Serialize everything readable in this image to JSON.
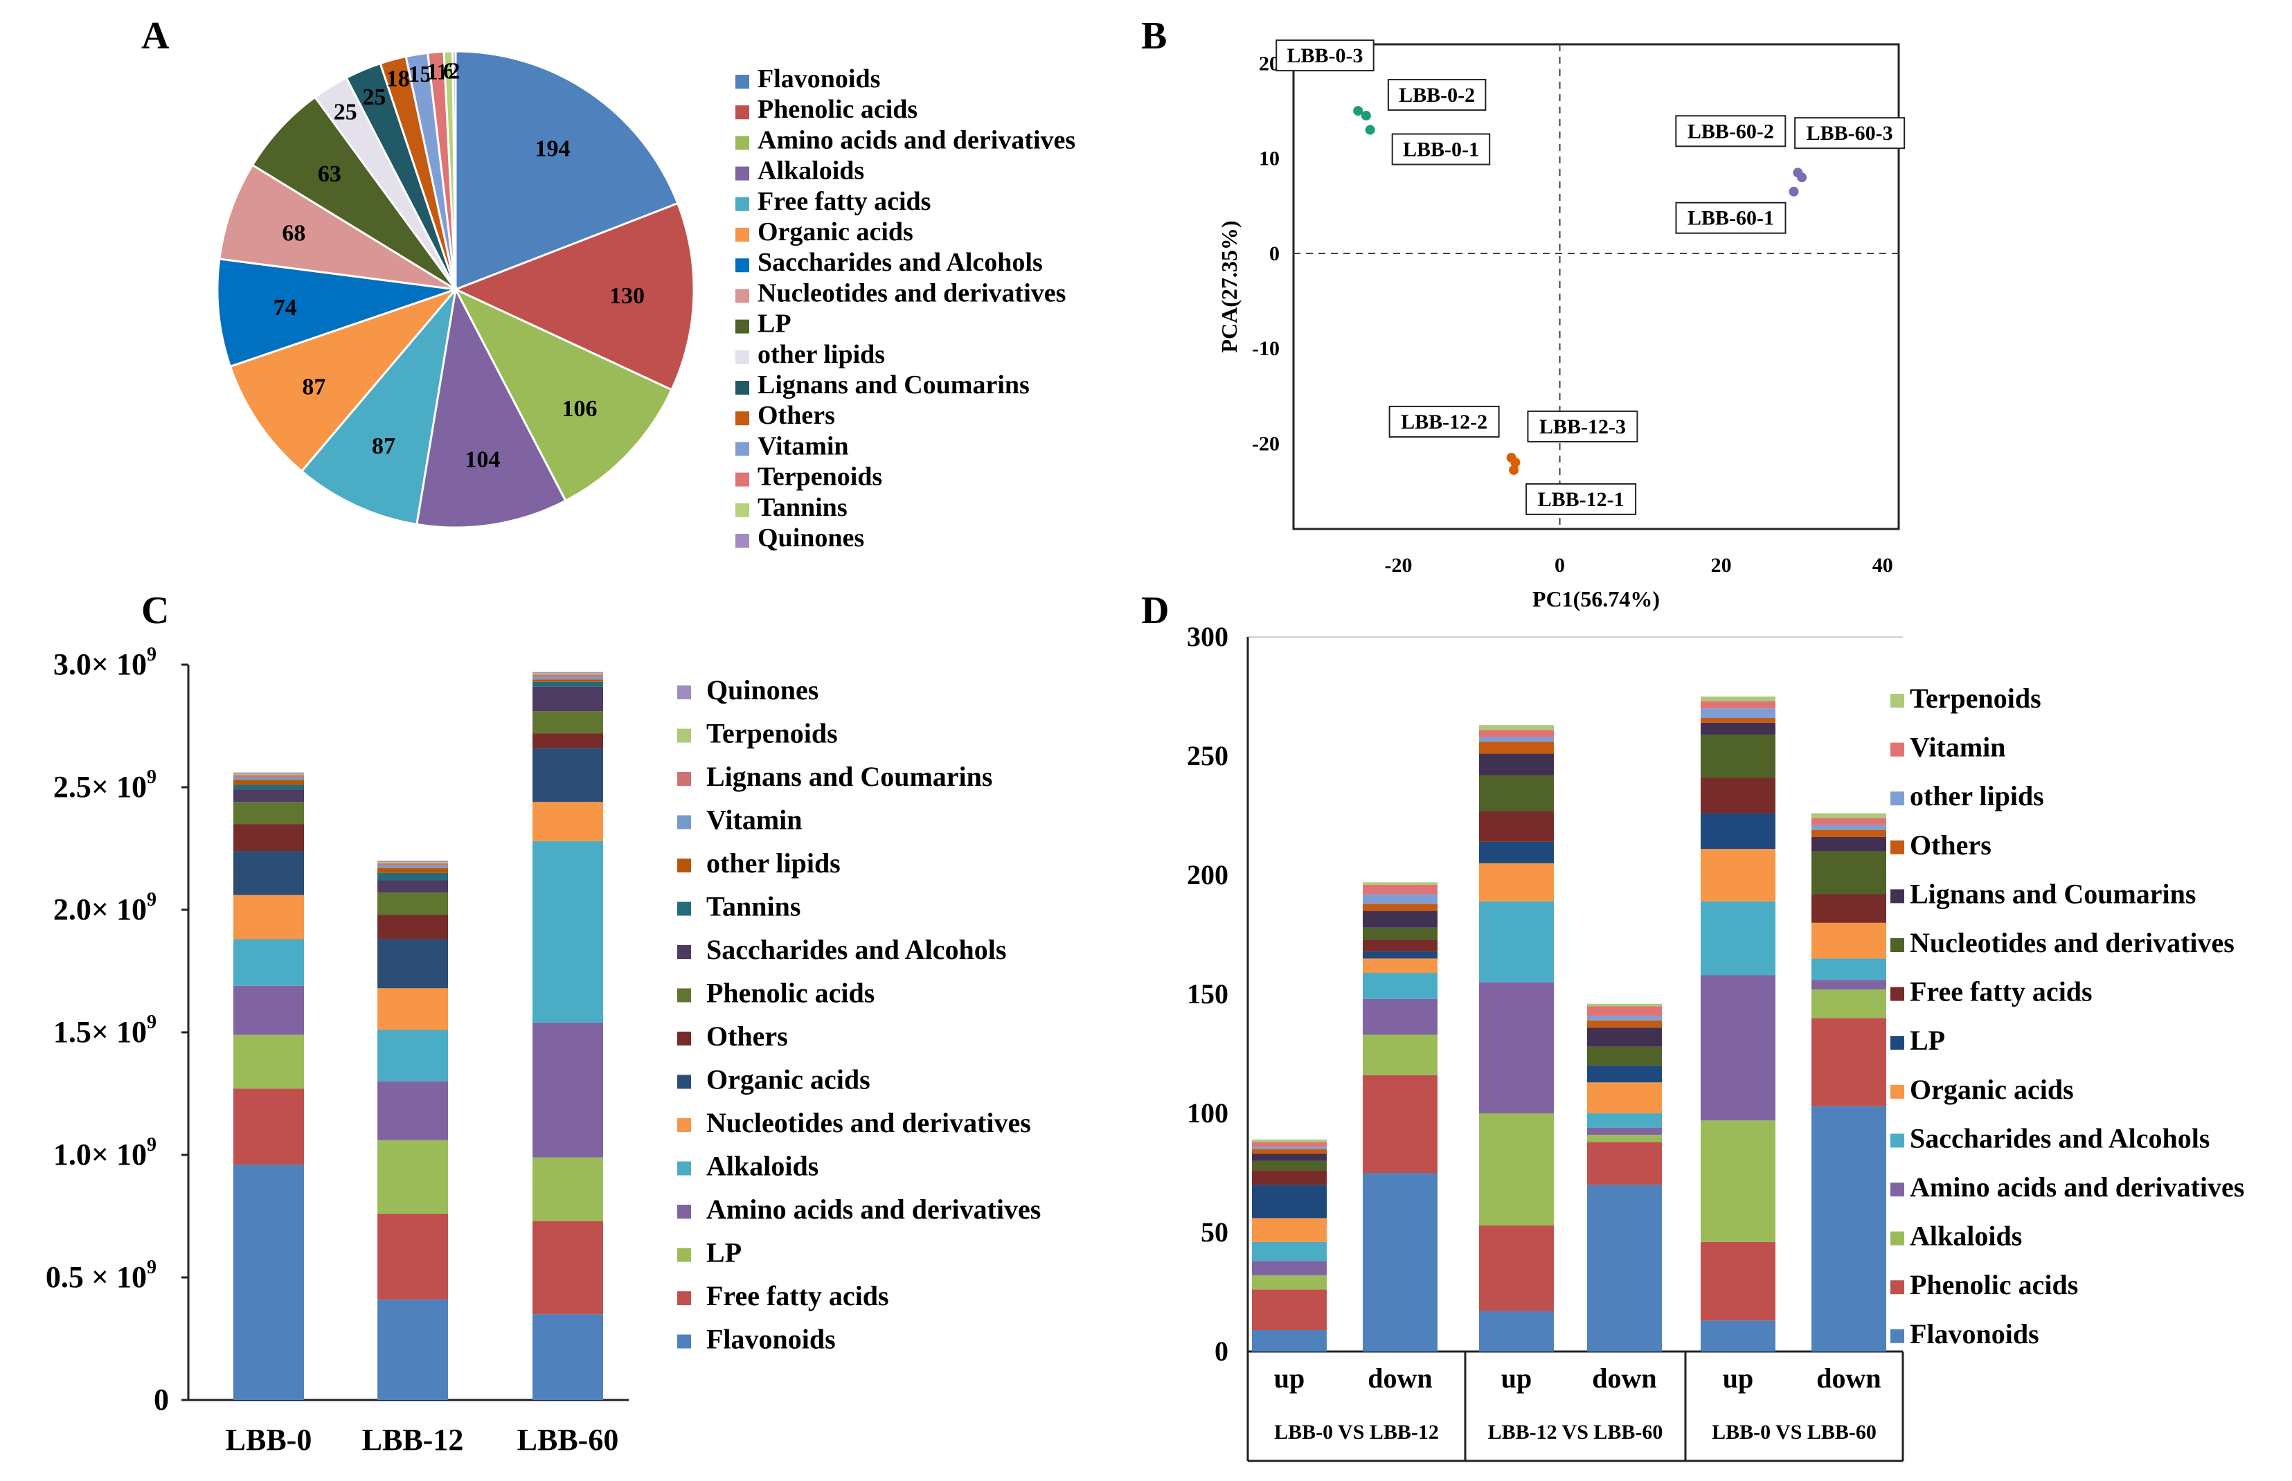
{
  "panel_labels": [
    "A",
    "B",
    "C",
    "D"
  ],
  "chart_data": [
    {
      "id": "A",
      "type": "pie",
      "categories": [
        "Flavonoids",
        "Phenolic acids",
        "Amino acids and derivatives",
        "Alkaloids",
        "Free fatty acids",
        "Organic acids",
        "Saccharides and Alcohols",
        "Nucleotides and derivatives",
        "LP",
        "other lipids",
        "Lignans and Coumarins",
        "Others",
        "Vitamin",
        "Terpenoids",
        "Tannins",
        "Quinones"
      ],
      "values": [
        194,
        130,
        106,
        104,
        87,
        87,
        74,
        68,
        63,
        25,
        25,
        18,
        15,
        11,
        6,
        2
      ],
      "value_labels": [
        "194",
        "130",
        "106",
        "104",
        "87",
        "87",
        "74",
        "68",
        "63",
        "25",
        "25",
        "18",
        "15",
        "11",
        "6",
        "2"
      ],
      "colors": [
        "#4f81bd",
        "#c0504d",
        "#9bbb59",
        "#8064a2",
        "#4bacc6",
        "#f79646",
        "#0070c0",
        "#d99694",
        "#4f6228",
        "#e4e0ec",
        "#215967",
        "#c55a11",
        "#7f9fd4",
        "#e07474",
        "#b5d37a",
        "#a58bc6"
      ]
    },
    {
      "id": "B",
      "type": "scatter",
      "xlabel": "PC1(56.74%)",
      "ylabel": "PCA(27.35%)",
      "xlim": [
        -33,
        42
      ],
      "ylim": [
        -29,
        22
      ],
      "xticks": [
        -20,
        0,
        20,
        40
      ],
      "yticks": [
        20,
        10,
        0,
        -10,
        -20
      ],
      "xtick_labels": [
        "-20",
        "0",
        "20",
        "40"
      ],
      "ytick_labels": [
        "20",
        "10",
        "0",
        "-10",
        "-20"
      ],
      "points": [
        {
          "label": "LBB-0-3",
          "x": -25,
          "y": 15,
          "color": "#1b9e77"
        },
        {
          "label": "LBB-0-2",
          "x": -24,
          "y": 14.5,
          "color": "#1b9e77"
        },
        {
          "label": "LBB-0-1",
          "x": -23.5,
          "y": 13,
          "color": "#1b9e77"
        },
        {
          "label": "LBB-60-2",
          "x": 29.5,
          "y": 8.5,
          "color": "#7570b3"
        },
        {
          "label": "LBB-60-3",
          "x": 30,
          "y": 8,
          "color": "#7570b3"
        },
        {
          "label": "LBB-60-1",
          "x": 29,
          "y": 6.5,
          "color": "#7570b3"
        },
        {
          "label": "LBB-12-2",
          "x": -6,
          "y": -21.5,
          "color": "#d95f02"
        },
        {
          "label": "LBB-12-3",
          "x": -5.5,
          "y": -22,
          "color": "#d95f02"
        },
        {
          "label": "LBB-12-1",
          "x": -5.7,
          "y": -22.8,
          "color": "#d95f02"
        }
      ]
    },
    {
      "id": "C",
      "type": "bar",
      "stacked": true,
      "categories": [
        "LBB-0",
        "LBB-12",
        "LBB-60"
      ],
      "ylim": [
        0,
        3000000000.0
      ],
      "ytick_values": [
        0,
        500000000.0,
        1000000000.0,
        1500000000.0,
        2000000000.0,
        2500000000.0,
        3000000000.0
      ],
      "ytick_labels": [
        "0",
        "0.5 × 10",
        "1.0× 10",
        "1.5× 10",
        "2.0× 10",
        "2.5× 10",
        "3.0× 10"
      ],
      "ytick_exponent": "9",
      "series": [
        {
          "name": "Flavonoids",
          "color": "#4f81bd",
          "values": [
            960000000.0,
            410000000.0,
            350000000.0
          ]
        },
        {
          "name": "Free fatty acids",
          "color": "#c0504d",
          "values": [
            310000000.0,
            350000000.0,
            380000000.0
          ]
        },
        {
          "name": "LP",
          "color": "#9bbb59",
          "values": [
            220000000.0,
            300000000.0,
            260000000.0
          ]
        },
        {
          "name": "Amino acids and derivatives",
          "color": "#8064a2",
          "values": [
            200000000.0,
            240000000.0,
            550000000.0
          ]
        },
        {
          "name": "Alkaloids",
          "color": "#4bacc6",
          "values": [
            190000000.0,
            210000000.0,
            740000000.0
          ]
        },
        {
          "name": "Nucleotides and derivatives",
          "color": "#f79646",
          "values": [
            180000000.0,
            170000000.0,
            160000000.0
          ]
        },
        {
          "name": "Organic acids",
          "color": "#2c4d75",
          "values": [
            180000000.0,
            200000000.0,
            220000000.0
          ]
        },
        {
          "name": "Others",
          "color": "#772c2a",
          "values": [
            110000000.0,
            100000000.0,
            60000000.0
          ]
        },
        {
          "name": "Phenolic acids",
          "color": "#5f7530",
          "values": [
            90000000.0,
            90000000.0,
            90000000.0
          ]
        },
        {
          "name": "Saccharides and Alcohols",
          "color": "#4d3b62",
          "values": [
            50000000.0,
            50000000.0,
            100000000.0
          ]
        },
        {
          "name": "Tannins",
          "color": "#276a7c",
          "values": [
            20000000.0,
            30000000.0,
            20000000.0
          ]
        },
        {
          "name": "other lipids",
          "color": "#b65708",
          "values": [
            20000000.0,
            20000000.0,
            10000000.0
          ]
        },
        {
          "name": "Vitamin",
          "color": "#729aca",
          "values": [
            10000000.0,
            10000000.0,
            10000000.0
          ]
        },
        {
          "name": "Lignans and Coumarins",
          "color": "#cd7371",
          "values": [
            10000000.0,
            10000000.0,
            10000000.0
          ]
        },
        {
          "name": "Terpenoids",
          "color": "#afc97a",
          "values": [
            5000000.0,
            5000000.0,
            5000000.0
          ]
        },
        {
          "name": "Quinones",
          "color": "#a18cbf",
          "values": [
            5000000.0,
            5000000.0,
            5000000.0
          ]
        }
      ],
      "legend_order": [
        "Quinones",
        "Terpenoids",
        "Lignans and Coumarins",
        "Vitamin",
        "other lipids",
        "Tannins",
        "Saccharides and Alcohols",
        "Phenolic acids",
        "Others",
        "Organic acids",
        "Nucleotides and derivatives",
        "Alkaloids",
        "Amino acids and derivatives",
        "LP",
        "Free fatty acids",
        "Flavonoids"
      ]
    },
    {
      "id": "D",
      "type": "bar",
      "stacked": true,
      "categories": [
        "up",
        "down",
        "up",
        "down",
        "up",
        "down"
      ],
      "groups": [
        "LBB-0 VS LBB-12",
        "LBB-12 VS LBB-60",
        "LBB-0 VS LBB-60"
      ],
      "ylim": [
        0,
        300
      ],
      "yticks": [
        0,
        50,
        100,
        150,
        200,
        250,
        300
      ],
      "ytick_labels": [
        "0",
        "50",
        "100",
        "150",
        "200",
        "250",
        "300"
      ],
      "series": [
        {
          "name": "Flavonoids",
          "color": "#4f81bd",
          "values": [
            9,
            75,
            17,
            70,
            13,
            103
          ]
        },
        {
          "name": "Phenolic acids",
          "color": "#c0504d",
          "values": [
            17,
            41,
            36,
            18,
            33,
            37
          ]
        },
        {
          "name": "Alkaloids",
          "color": "#9bbb59",
          "values": [
            6,
            17,
            47,
            3,
            51,
            12
          ]
        },
        {
          "name": "Amino acids and derivatives",
          "color": "#8064a2",
          "values": [
            6,
            15,
            55,
            3,
            61,
            4
          ]
        },
        {
          "name": "Saccharides and Alcohols",
          "color": "#4bacc6",
          "values": [
            8,
            11,
            34,
            6,
            31,
            9
          ]
        },
        {
          "name": "Organic acids",
          "color": "#f79646",
          "values": [
            10,
            6,
            16,
            13,
            22,
            15
          ]
        },
        {
          "name": "LP",
          "color": "#1f497d",
          "values": [
            14,
            3,
            9,
            7,
            15,
            0
          ]
        },
        {
          "name": "Free fatty acids",
          "color": "#772c2a",
          "values": [
            6,
            5,
            13,
            0,
            15,
            12
          ]
        },
        {
          "name": "Nucleotides and derivatives",
          "color": "#4f6228",
          "values": [
            4,
            5,
            15,
            8,
            18,
            18
          ]
        },
        {
          "name": "Lignans and Coumarins",
          "color": "#403152",
          "values": [
            3,
            7,
            9,
            8,
            5,
            6
          ]
        },
        {
          "name": "Others",
          "color": "#c55a11",
          "values": [
            2,
            3,
            5,
            3,
            2,
            3
          ]
        },
        {
          "name": "other lipids",
          "color": "#7f9fd4",
          "values": [
            1,
            4,
            2,
            2,
            4,
            2
          ]
        },
        {
          "name": "Vitamin",
          "color": "#e07474",
          "values": [
            2,
            4,
            3,
            4,
            3,
            3
          ]
        },
        {
          "name": "Terpenoids",
          "color": "#afc97a",
          "values": [
            1,
            1,
            2,
            1,
            2,
            2
          ]
        }
      ],
      "legend_order": [
        "Terpenoids",
        "Vitamin",
        "other lipids",
        "Others",
        "Lignans and Coumarins",
        "Nucleotides and derivatives",
        "Free fatty acids",
        "LP",
        "Organic acids",
        "Saccharides and Alcohols",
        "Amino acids and derivatives",
        "Alkaloids",
        "Phenolic acids",
        "Flavonoids"
      ]
    }
  ]
}
